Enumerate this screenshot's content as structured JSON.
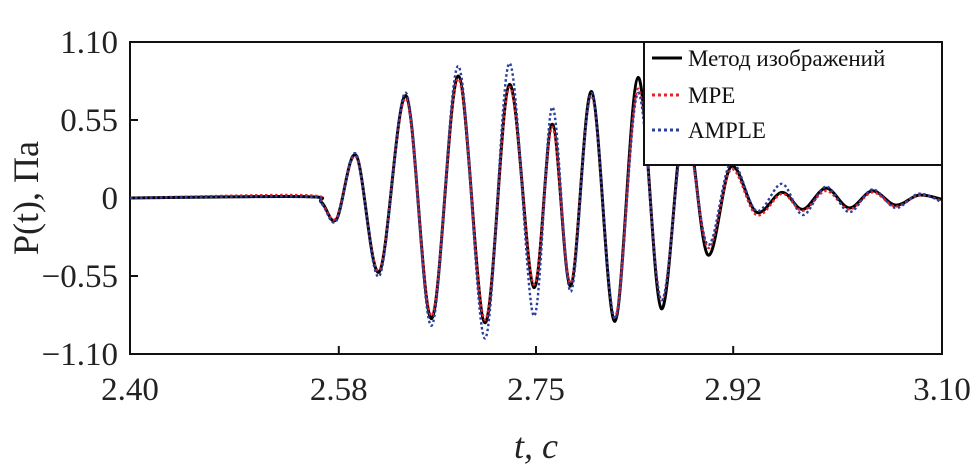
{
  "chart_data": {
    "type": "line",
    "title": "",
    "xlabel": "t, с",
    "ylabel": "P(t), Па",
    "xlim": [
      2.4,
      3.1
    ],
    "ylim": [
      -1.1,
      1.1
    ],
    "x_ticks": [
      2.4,
      2.58,
      2.75,
      2.92,
      3.1
    ],
    "x_tick_labels": [
      "2.40",
      "2.58",
      "2.75",
      "2.92",
      "3.10"
    ],
    "y_ticks": [
      1.1,
      0.55,
      0,
      -0.55,
      -1.1
    ],
    "y_tick_labels": [
      "1.10",
      "0.55",
      "0",
      "−0.55",
      "−1.10"
    ],
    "grid": false,
    "legend_position": "top-right",
    "series": [
      {
        "name": "Метод изображений",
        "color": "#000000",
        "style": "solid",
        "points": [
          [
            2.4,
            0
          ],
          [
            2.55,
            0.01
          ],
          [
            2.565,
            -0.03
          ],
          [
            2.578,
            -0.15
          ],
          [
            2.595,
            0.3
          ],
          [
            2.615,
            -0.52
          ],
          [
            2.638,
            0.72
          ],
          [
            2.66,
            -0.85
          ],
          [
            2.683,
            0.86
          ],
          [
            2.706,
            -0.88
          ],
          [
            2.727,
            0.8
          ],
          [
            2.748,
            -0.63
          ],
          [
            2.764,
            0.52
          ],
          [
            2.78,
            -0.62
          ],
          [
            2.798,
            0.75
          ],
          [
            2.818,
            -0.87
          ],
          [
            2.838,
            0.85
          ],
          [
            2.858,
            -0.78
          ],
          [
            2.878,
            0.55
          ],
          [
            2.898,
            -0.4
          ],
          [
            2.918,
            0.22
          ],
          [
            2.94,
            -0.1
          ],
          [
            2.962,
            0.04
          ],
          [
            2.98,
            -0.08
          ],
          [
            3.0,
            0.07
          ],
          [
            3.02,
            -0.07
          ],
          [
            3.04,
            0.05
          ],
          [
            3.06,
            -0.05
          ],
          [
            3.08,
            0.02
          ],
          [
            3.1,
            -0.01
          ]
        ]
      },
      {
        "name": "MPE",
        "color": "#e8202a",
        "style": "dotted",
        "points": [
          [
            2.4,
            0
          ],
          [
            2.55,
            0.02
          ],
          [
            2.565,
            -0.04
          ],
          [
            2.578,
            -0.14
          ],
          [
            2.595,
            0.29
          ],
          [
            2.615,
            -0.51
          ],
          [
            2.638,
            0.7
          ],
          [
            2.66,
            -0.83
          ],
          [
            2.683,
            0.84
          ],
          [
            2.706,
            -0.86
          ],
          [
            2.727,
            0.78
          ],
          [
            2.748,
            -0.61
          ],
          [
            2.764,
            0.5
          ],
          [
            2.78,
            -0.6
          ],
          [
            2.798,
            0.72
          ],
          [
            2.818,
            -0.84
          ],
          [
            2.838,
            0.77
          ],
          [
            2.858,
            -0.72
          ],
          [
            2.878,
            0.48
          ],
          [
            2.898,
            -0.35
          ],
          [
            2.918,
            0.2
          ],
          [
            2.94,
            -0.12
          ],
          [
            2.962,
            0.03
          ],
          [
            2.98,
            -0.09
          ],
          [
            3.0,
            0.05
          ],
          [
            3.02,
            -0.08
          ],
          [
            3.04,
            0.04
          ],
          [
            3.06,
            -0.06
          ],
          [
            3.08,
            0.02
          ],
          [
            3.1,
            -0.02
          ]
        ]
      },
      {
        "name": "AMPLE",
        "color": "#2b3f9e",
        "style": "dotted",
        "points": [
          [
            2.4,
            0
          ],
          [
            2.55,
            0.01
          ],
          [
            2.565,
            -0.04
          ],
          [
            2.578,
            -0.16
          ],
          [
            2.595,
            0.31
          ],
          [
            2.615,
            -0.55
          ],
          [
            2.638,
            0.74
          ],
          [
            2.66,
            -0.9
          ],
          [
            2.683,
            0.93
          ],
          [
            2.706,
            -0.99
          ],
          [
            2.727,
            0.95
          ],
          [
            2.748,
            -0.83
          ],
          [
            2.764,
            0.64
          ],
          [
            2.78,
            -0.66
          ],
          [
            2.798,
            0.74
          ],
          [
            2.818,
            -0.85
          ],
          [
            2.838,
            0.74
          ],
          [
            2.858,
            -0.72
          ],
          [
            2.878,
            0.47
          ],
          [
            2.898,
            -0.33
          ],
          [
            2.918,
            0.25
          ],
          [
            2.94,
            -0.09
          ],
          [
            2.962,
            0.1
          ],
          [
            2.98,
            -0.12
          ],
          [
            3.0,
            0.08
          ],
          [
            3.02,
            -0.1
          ],
          [
            3.04,
            0.06
          ],
          [
            3.06,
            -0.07
          ],
          [
            3.08,
            0.03
          ],
          [
            3.1,
            -0.03
          ]
        ]
      }
    ]
  }
}
